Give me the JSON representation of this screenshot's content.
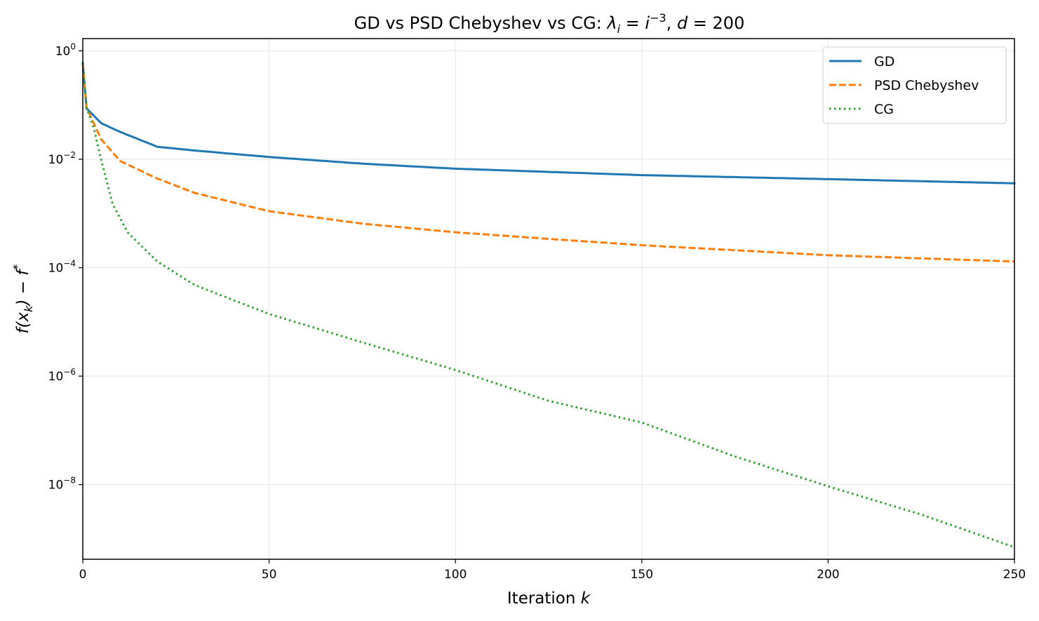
{
  "chart_data": {
    "type": "line",
    "title": "GD vs PSD Chebyshev vs CG: λ_i = i^−3, d = 200",
    "title_parts": {
      "prefix": "GD vs PSD Chebyshev vs CG: ",
      "lambda": "λ",
      "sub": "i",
      "eq": " = ",
      "i": "i",
      "exp": "−3",
      "comma": ", ",
      "d": "d",
      "deq": " = 200"
    },
    "xlabel": "Iteration",
    "xlabel_var": "k",
    "ylabel": "f(x_k) − f*",
    "ylabel_parts": {
      "f": "f(x",
      "sub": "k",
      "mid": ") − f",
      "sup": "*"
    },
    "xlim": [
      0,
      250
    ],
    "ylim": [
      4.2e-10,
      1.68
    ],
    "yscale": "log",
    "grid": true,
    "legend_position": "top-right",
    "xticks": [
      "0",
      "50",
      "100",
      "150",
      "200",
      "250"
    ],
    "yticks": [
      {
        "base": "10",
        "exp": "0"
      },
      {
        "base": "10",
        "exp": "−2"
      },
      {
        "base": "10",
        "exp": "−4"
      },
      {
        "base": "10",
        "exp": "−6"
      },
      {
        "base": "10",
        "exp": "−8"
      }
    ],
    "series": [
      {
        "name": "GD",
        "color": "#1f77b4",
        "style": "solid",
        "x": [
          0,
          1,
          5,
          10,
          20,
          30,
          50,
          75,
          100,
          150,
          200,
          250
        ],
        "y": [
          0.6,
          0.087,
          0.046,
          0.032,
          0.017,
          0.0145,
          0.011,
          0.0083,
          0.0067,
          0.0051,
          0.0043,
          0.0036
        ]
      },
      {
        "name": "PSD Chebyshev",
        "color": "#ff7f0e",
        "style": "dashed",
        "x": [
          0,
          1,
          5,
          10,
          20,
          30,
          50,
          75,
          100,
          125,
          150,
          175,
          200,
          250
        ],
        "y": [
          0.6,
          0.09,
          0.023,
          0.0093,
          0.0044,
          0.0024,
          0.0011,
          0.00065,
          0.00045,
          0.00034,
          0.00026,
          0.00021,
          0.00017,
          0.00013
        ]
      },
      {
        "name": "CG",
        "color": "#2ca02c",
        "style": "dotted",
        "x": [
          0,
          1,
          3,
          5,
          8,
          12,
          20,
          30,
          50,
          75,
          100,
          125,
          150,
          175,
          200,
          225,
          250
        ],
        "y": [
          0.6,
          0.09,
          0.037,
          0.0093,
          0.0015,
          0.00045,
          0.00013,
          4.8e-05,
          1.4e-05,
          4.2e-06,
          1.3e-06,
          3.5e-07,
          1.4e-07,
          3.3e-08,
          9.3e-09,
          2.8e-09,
          7e-10
        ]
      }
    ]
  }
}
